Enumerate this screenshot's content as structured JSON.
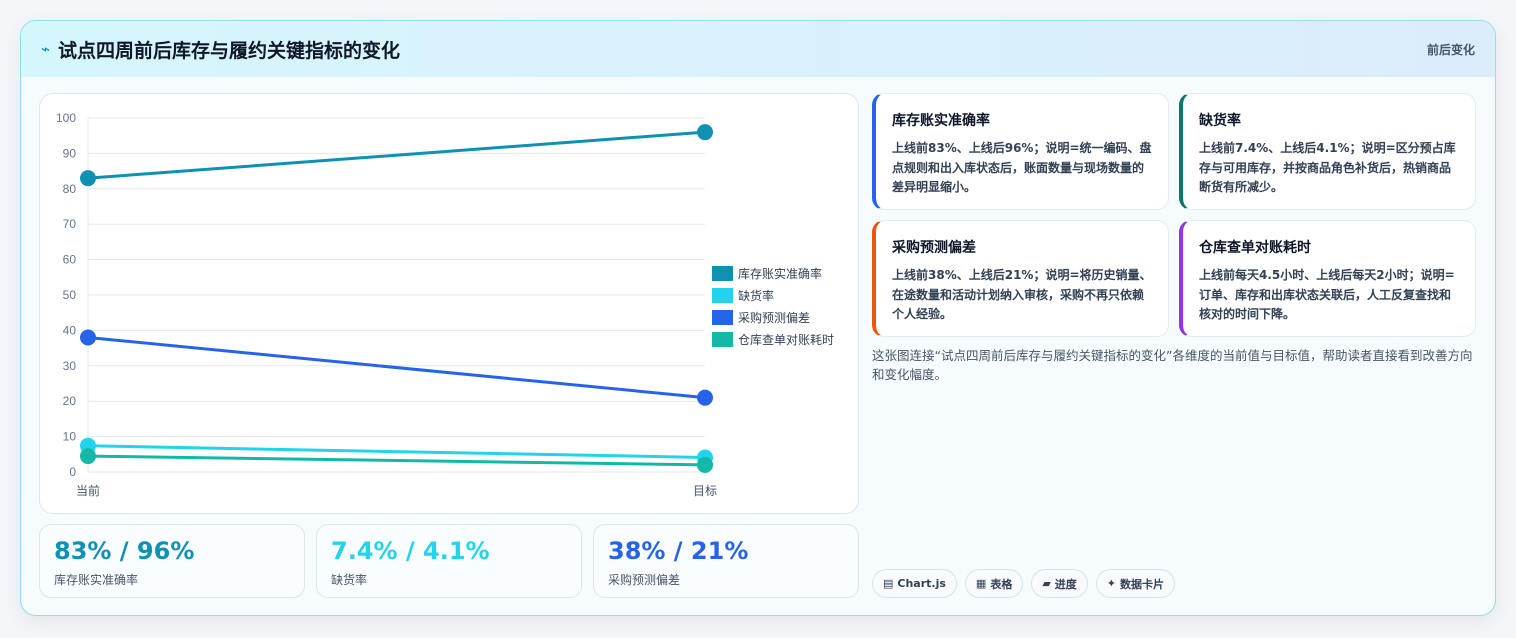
{
  "header": {
    "icon": "lightning-icon",
    "title": "试点四周前后库存与履约关键指标的变化",
    "tag": "前后变化"
  },
  "chart_data": {
    "type": "line",
    "categories": [
      "当前",
      "目标"
    ],
    "ylim": [
      0,
      100
    ],
    "yticks": [
      0,
      10,
      20,
      30,
      40,
      50,
      60,
      70,
      80,
      90,
      100
    ],
    "grid": true,
    "legend_position": "right",
    "series": [
      {
        "name": "库存账实准确率",
        "color": "#0e91b2",
        "values": [
          83,
          96
        ]
      },
      {
        "name": "缺货率",
        "color": "#22d3ee",
        "values": [
          7.4,
          4.1
        ]
      },
      {
        "name": "采购预测偏差",
        "color": "#2563eb",
        "values": [
          38,
          21
        ]
      },
      {
        "name": "仓库查单对账耗时",
        "color": "#14b8a6",
        "values": [
          4.5,
          2
        ]
      }
    ]
  },
  "stats": [
    {
      "value": "83% / 96%",
      "label": "库存账实准确率",
      "color": "#0e91b2"
    },
    {
      "value": "7.4% / 4.1%",
      "label": "缺货率",
      "color": "#22d3ee"
    },
    {
      "value": "38% / 21%",
      "label": "采购预测偏差",
      "color": "#2563eb"
    }
  ],
  "metrics": [
    {
      "title": "库存账实准确率",
      "desc": "上线前83%、上线后96%；说明=统一编码、盘点规则和出入库状态后，账面数量与现场数量的差异明显缩小。",
      "color": "#2563eb"
    },
    {
      "title": "缺货率",
      "desc": "上线前7.4%、上线后4.1%；说明=区分预占库存与可用库存，并按商品角色补货后，热销商品断货有所减少。",
      "color": "#0f766e"
    },
    {
      "title": "采购预测偏差",
      "desc": "上线前38%、上线后21%；说明=将历史销量、在途数量和活动计划纳入审核，采购不再只依赖个人经验。",
      "color": "#ea580c"
    },
    {
      "title": "仓库查单对账耗时",
      "desc": "上线前每天4.5小时、上线后每天2小时；说明=订单、库存和出库状态关联后，人工反复查找和核对的时间下降。",
      "color": "#9333ea"
    }
  ],
  "note": "这张图连接“试点四周前后库存与履约关键指标的变化”各维度的当前值与目标值，帮助读者直接看到改善方向和变化幅度。",
  "chips": [
    {
      "icon": "chart-icon",
      "glyph": "▤",
      "label": "Chart.js"
    },
    {
      "icon": "table-icon",
      "glyph": "▦",
      "label": "表格"
    },
    {
      "icon": "progress-icon",
      "glyph": "▰",
      "label": "进度"
    },
    {
      "icon": "sparkle-icon",
      "glyph": "✦",
      "label": "数据卡片"
    }
  ]
}
